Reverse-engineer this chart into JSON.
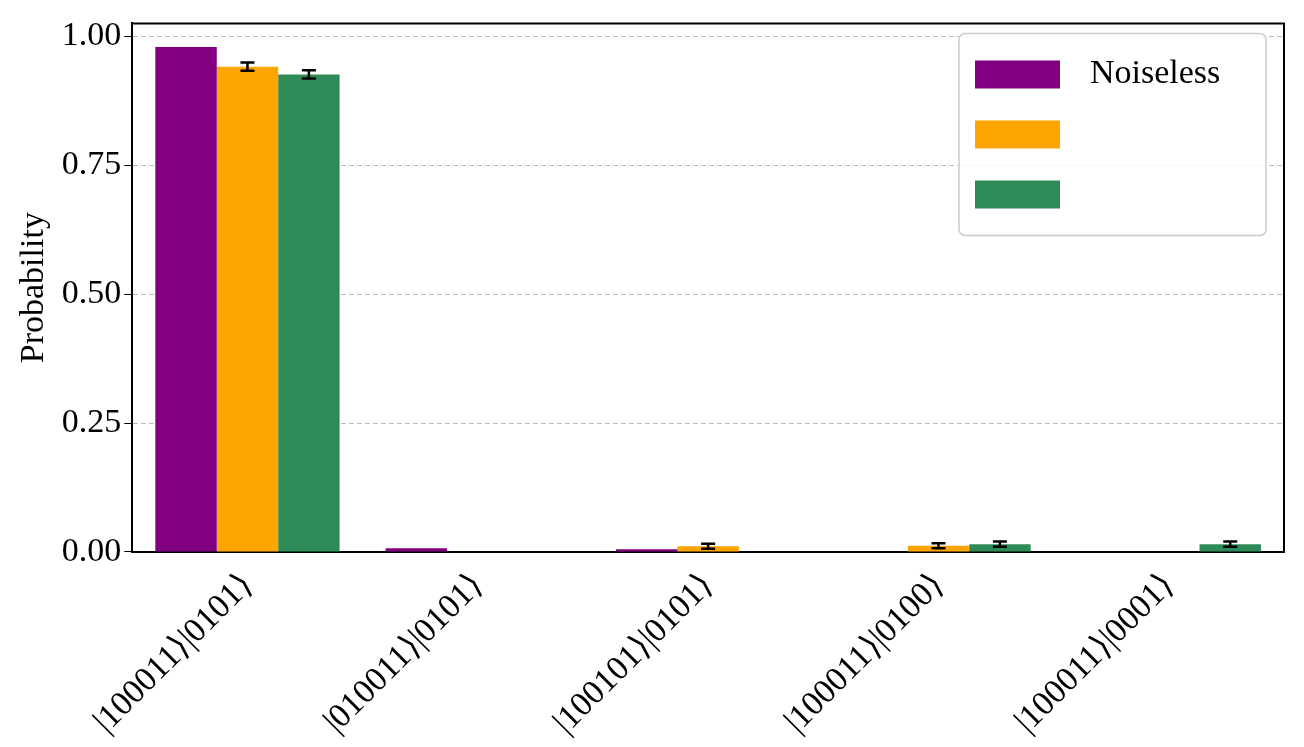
{
  "chart_data": {
    "type": "bar",
    "ylabel": "Probability",
    "categories": [
      "|100011⟩|0101⟩",
      "|010011⟩|0101⟩",
      "|100101⟩|0101⟩",
      "|100011⟩|0100⟩",
      "|100011⟩|0001⟩"
    ],
    "series": [
      {
        "name": "Noiseless",
        "color": "#800080",
        "values": [
          0.979,
          0.007,
          0.005,
          0,
          0
        ]
      },
      {
        "color": "#ffa500",
        "values": [
          0.941,
          0,
          0.011,
          0.012,
          0
        ],
        "errors": [
          0.008,
          null,
          0.005,
          0.005,
          null
        ]
      },
      {
        "color": "#2e8b57",
        "values": [
          0.926,
          0,
          0,
          0.015,
          0.015
        ],
        "errors": [
          0.008,
          null,
          null,
          0.005,
          0.005
        ]
      }
    ],
    "ylim": [
      0,
      1.025
    ],
    "yticks": [
      {
        "value": 0,
        "label": "0.00"
      },
      {
        "value": 0.25,
        "label": "0.25"
      },
      {
        "value": 0.5,
        "label": "0.50"
      },
      {
        "value": 0.75,
        "label": "0.75"
      },
      {
        "value": 1,
        "label": "1.00"
      }
    ],
    "grid": "y",
    "legend": "top right"
  }
}
